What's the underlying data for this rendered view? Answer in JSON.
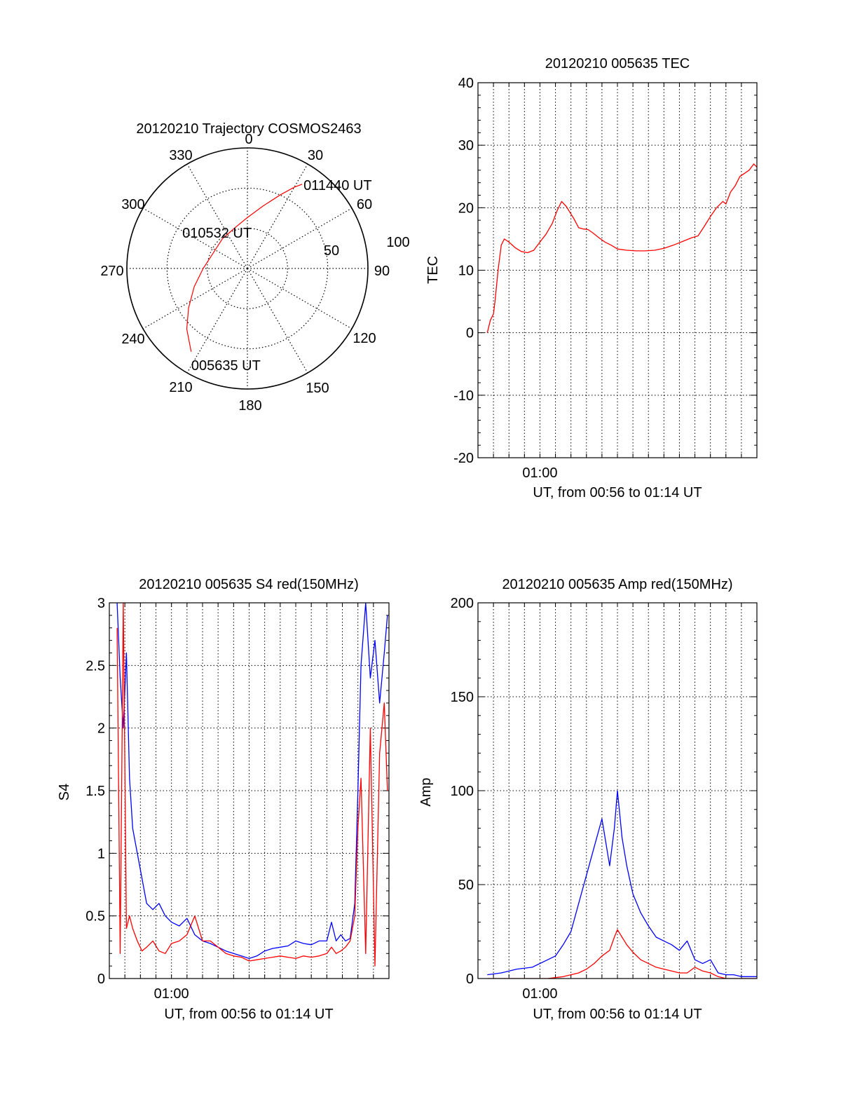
{
  "colors": {
    "red": "#ff0000",
    "blue": "#0000ff",
    "axis": "#000000",
    "grid": "#000000",
    "background": "#ffffff"
  },
  "chart_data": [
    {
      "type": "polar",
      "title": "20120210 Trajectory COSMOS2463",
      "azimuth_labels": [
        "0",
        "30",
        "60",
        "90",
        "120",
        "150",
        "180",
        "210",
        "240",
        "270",
        "300",
        "330"
      ],
      "ring_labels": [
        "50",
        "100"
      ],
      "grid": true,
      "series": [
        {
          "color": "red",
          "points": [
            {
              "az": 214,
              "r": 75
            },
            {
              "az": 225,
              "r": 64
            },
            {
              "az": 236,
              "r": 53
            },
            {
              "az": 251,
              "r": 42
            },
            {
              "az": 270,
              "r": 33
            },
            {
              "az": 294,
              "r": 28
            },
            {
              "az": 320,
              "r": 29
            },
            {
              "az": 344,
              "r": 32
            },
            {
              "az": 0,
              "r": 38
            },
            {
              "az": 14,
              "r": 48
            },
            {
              "az": 24,
              "r": 60
            },
            {
              "az": 30,
              "r": 70
            },
            {
              "az": 33,
              "r": 75
            }
          ]
        }
      ],
      "annotations": [
        {
          "text": "011440 UT",
          "az": 33,
          "r": 75
        },
        {
          "text": "010532 UT",
          "az": 294,
          "r": 28
        },
        {
          "text": "005635 UT",
          "az": 214,
          "r": 75
        }
      ]
    },
    {
      "type": "line",
      "title": "20120210 005635 TEC",
      "xlabel": "UT, from 00:56 to 01:14 UT",
      "ylabel": "TEC",
      "xlim": [
        0,
        18
      ],
      "ylim": [
        -20,
        40
      ],
      "yticks": [
        -20,
        -10,
        0,
        10,
        20,
        30,
        40
      ],
      "xtick_labels": [
        {
          "x": 4,
          "label": "01:00"
        }
      ],
      "grid": true,
      "series": [
        {
          "color": "red",
          "x": [
            0.6,
            0.8,
            1.0,
            1.1,
            1.3,
            1.5,
            1.7,
            2.0,
            2.4,
            2.8,
            3.2,
            3.6,
            4.0,
            4.4,
            4.8,
            5.1,
            5.4,
            5.7,
            6.0,
            6.2,
            6.5,
            6.8,
            7.1,
            7.4,
            7.8,
            8.2,
            8.6,
            9.0,
            9.6,
            10.2,
            10.8,
            11.4,
            12.0,
            12.6,
            13.2,
            13.8,
            14.2,
            14.6,
            15.0,
            15.4,
            15.8,
            16.0,
            16.3,
            16.6,
            16.9,
            17.2,
            17.5,
            17.8,
            18.0
          ],
          "y": [
            0,
            2,
            3,
            5,
            10,
            14,
            15,
            14.5,
            13.6,
            13,
            12.8,
            13.2,
            14.5,
            15.8,
            17.5,
            19.5,
            21,
            20.2,
            19,
            18.2,
            16.8,
            16.6,
            16.5,
            16,
            15.2,
            14.5,
            14,
            13.4,
            13.2,
            13.1,
            13.1,
            13.2,
            13.5,
            14,
            14.6,
            15.2,
            15.5,
            17,
            18.6,
            20,
            21,
            20.6,
            22.5,
            23.5,
            25,
            25.5,
            26,
            27,
            26.5
          ]
        }
      ]
    },
    {
      "type": "line",
      "title": "20120210 005635 S4 red(150MHz)",
      "xlabel": "UT, from 00:56 to 01:14 UT",
      "ylabel": "S4",
      "xlim": [
        0,
        18
      ],
      "ylim": [
        0,
        3
      ],
      "yticks": [
        0,
        0.5,
        1,
        1.5,
        2,
        2.5,
        3
      ],
      "ytick_labels": [
        "0",
        "0.5",
        "1",
        "1.5",
        "2",
        "2.5",
        "3"
      ],
      "xtick_labels": [
        {
          "x": 4,
          "label": "01:00"
        }
      ],
      "grid": true,
      "series": [
        {
          "color": "blue",
          "x": [
            0.5,
            0.7,
            0.9,
            1.1,
            1.3,
            1.5,
            1.8,
            2.1,
            2.4,
            2.8,
            3.2,
            3.6,
            4.0,
            4.5,
            5.0,
            5.5,
            6.0,
            6.5,
            7.0,
            7.5,
            8.0,
            8.5,
            9.0,
            9.5,
            10.0,
            10.5,
            11.0,
            11.5,
            12.0,
            12.5,
            13.0,
            13.5,
            14.0,
            14.3,
            14.6,
            14.9,
            15.2,
            15.5,
            15.8,
            16.0,
            16.2,
            16.5,
            16.8,
            17.1,
            17.4,
            17.7,
            17.9
          ],
          "y": [
            3,
            2.4,
            2.0,
            2.6,
            1.6,
            1.2,
            1.0,
            0.8,
            0.6,
            0.55,
            0.6,
            0.5,
            0.45,
            0.42,
            0.48,
            0.35,
            0.3,
            0.28,
            0.25,
            0.22,
            0.2,
            0.18,
            0.16,
            0.18,
            0.22,
            0.24,
            0.25,
            0.26,
            0.3,
            0.28,
            0.27,
            0.3,
            0.3,
            0.45,
            0.3,
            0.35,
            0.3,
            0.32,
            0.6,
            1.5,
            2.5,
            3,
            2.4,
            2.7,
            2.2,
            2.6,
            2.9
          ]
        },
        {
          "color": "red",
          "x": [
            0.5,
            0.7,
            0.9,
            1.1,
            1.3,
            1.5,
            1.8,
            2.1,
            2.4,
            2.8,
            3.2,
            3.6,
            4.0,
            4.5,
            5.0,
            5.5,
            6.0,
            6.5,
            7.0,
            7.5,
            8.0,
            8.5,
            9.0,
            9.5,
            10.0,
            10.5,
            11.0,
            11.5,
            12.0,
            12.5,
            13.0,
            13.5,
            14.0,
            14.3,
            14.6,
            14.9,
            15.2,
            15.5,
            15.8,
            16.0,
            16.2,
            16.5,
            16.8,
            17.1,
            17.4,
            17.7,
            17.9
          ],
          "y": [
            2.8,
            0.2,
            3,
            0.4,
            0.5,
            0.4,
            0.3,
            0.22,
            0.25,
            0.3,
            0.22,
            0.2,
            0.28,
            0.3,
            0.35,
            0.5,
            0.3,
            0.3,
            0.25,
            0.2,
            0.18,
            0.17,
            0.14,
            0.15,
            0.16,
            0.17,
            0.18,
            0.17,
            0.16,
            0.18,
            0.17,
            0.18,
            0.2,
            0.25,
            0.2,
            0.22,
            0.25,
            0.3,
            0.5,
            1.2,
            1.6,
            0.2,
            2.0,
            0.1,
            1.8,
            2.2,
            1.5
          ]
        }
      ]
    },
    {
      "type": "line",
      "title": "20120210 005635 Amp red(150MHz)",
      "xlabel": "UT, from 00:56 to 01:14 UT",
      "ylabel": "Amp",
      "xlim": [
        0,
        18
      ],
      "ylim": [
        0,
        200
      ],
      "yticks": [
        0,
        50,
        100,
        150,
        200
      ],
      "xtick_labels": [
        {
          "x": 4,
          "label": "01:00"
        }
      ],
      "grid": true,
      "series": [
        {
          "color": "blue",
          "x": [
            0.6,
            1.5,
            2.5,
            3.5,
            4.5,
            5.0,
            5.5,
            6.0,
            6.5,
            7.0,
            7.5,
            8.0,
            8.5,
            8.8,
            9.0,
            9.3,
            9.6,
            10.0,
            10.5,
            11.0,
            11.5,
            12.0,
            12.5,
            13.0,
            13.5,
            14.0,
            14.5,
            15.0,
            15.5,
            16.0,
            16.5,
            17.0,
            17.5,
            18.0
          ],
          "y": [
            2,
            3,
            5,
            6,
            10,
            12,
            18,
            25,
            40,
            55,
            70,
            85,
            60,
            80,
            100,
            75,
            60,
            45,
            35,
            28,
            22,
            20,
            18,
            15,
            20,
            10,
            8,
            10,
            3,
            2,
            2,
            1,
            1,
            1
          ]
        },
        {
          "color": "red",
          "x": [
            0.6,
            2.5,
            4.5,
            5.5,
            6.0,
            6.5,
            7.0,
            7.5,
            8.0,
            8.5,
            8.8,
            9.0,
            9.3,
            9.6,
            10.0,
            10.5,
            11.0,
            11.5,
            12.0,
            12.5,
            13.0,
            13.5,
            14.0,
            14.5,
            15.0,
            15.5,
            16.0,
            18.0
          ],
          "y": [
            0,
            0,
            0,
            1,
            2,
            3,
            5,
            8,
            12,
            15,
            22,
            26,
            22,
            18,
            14,
            10,
            8,
            6,
            5,
            4,
            3,
            3,
            6,
            4,
            3,
            1,
            0,
            0
          ]
        }
      ]
    }
  ]
}
